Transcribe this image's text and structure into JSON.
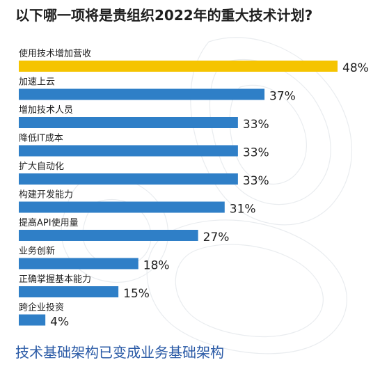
{
  "chart_data": {
    "type": "bar",
    "orientation": "horizontal",
    "title": "以下哪一项将是贵组织2022年的重大技术计划?",
    "categories": [
      "使用技术增加营收",
      "加速上云",
      "增加技术人员",
      "降低IT成本",
      "扩大自动化",
      "构建开发能力",
      "提高API使用量",
      "业务创新",
      "正确掌握基本能力",
      "跨企业投资"
    ],
    "values": [
      48,
      37,
      33,
      33,
      33,
      31,
      27,
      18,
      15,
      4
    ],
    "value_labels": [
      "48%",
      "37%",
      "33%",
      "33%",
      "33%",
      "31%",
      "27%",
      "18%",
      "15%",
      "4%"
    ],
    "unit": "%",
    "xlim": [
      0,
      48
    ],
    "grid": false,
    "legend": "none",
    "colors": {
      "highlight": "#f5c400",
      "bar": "#2f7fc7"
    }
  },
  "footer": {
    "text": "技术基础架构已变成业务基础架构"
  },
  "colors": {
    "title": "#1f1f1f",
    "footer": "#2a5aa6",
    "contour": "#e9ecef"
  }
}
